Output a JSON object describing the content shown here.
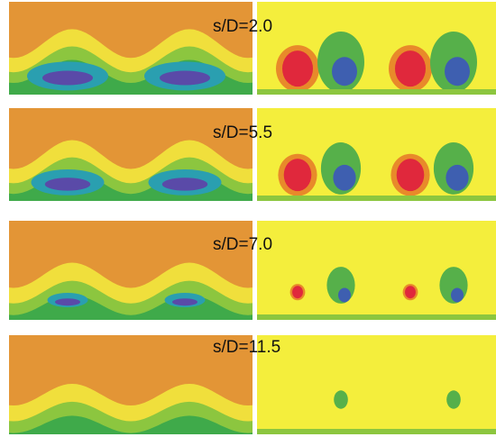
{
  "panels": [
    {
      "label": "s/D=2.0"
    },
    {
      "label": "s/D=5.5"
    },
    {
      "label": "s/D=7.0"
    },
    {
      "label": "s/D=11.5"
    }
  ]
}
